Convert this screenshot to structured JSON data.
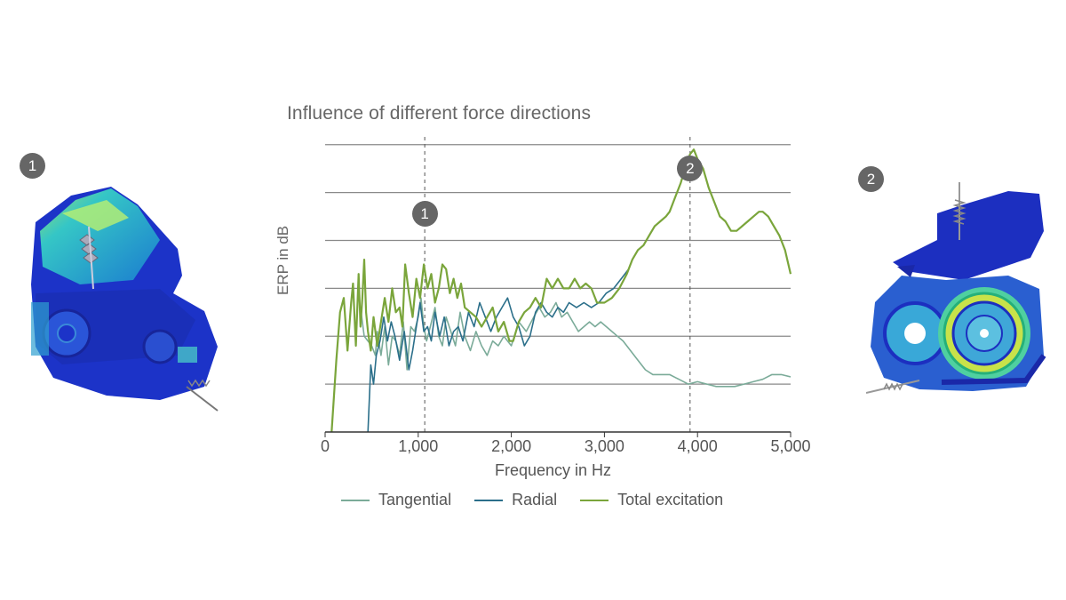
{
  "markers": [
    "1",
    "2"
  ],
  "chart_data": {
    "type": "line",
    "title": "Influence of different force directions",
    "xlabel": "Frequency in Hz",
    "ylabel": "ERP in dB",
    "xlim": [
      0,
      5000
    ],
    "ylim": [
      0,
      6.2
    ],
    "xticks": [
      0,
      1000,
      2000,
      3000,
      4000,
      5000
    ],
    "xtick_labels": [
      "0",
      "1,000",
      "2,000",
      "3,000",
      "4,000",
      "5,000"
    ],
    "ygrid": [
      1,
      2,
      3,
      4,
      5,
      6
    ],
    "legend_position": "bottom-center",
    "reference_lines": [
      {
        "x": 1070,
        "label": "1",
        "label_y": 4.55
      },
      {
        "x": 3920,
        "label": "2",
        "label_y": 5.5
      }
    ],
    "series": [
      {
        "name": "Tangential",
        "color": "#7bab99",
        "x": [
          380,
          420,
          460,
          500,
          540,
          560,
          600,
          640,
          680,
          720,
          760,
          800,
          840,
          880,
          920,
          960,
          1000,
          1030,
          1060,
          1090,
          1130,
          1180,
          1220,
          1260,
          1300,
          1350,
          1400,
          1450,
          1500,
          1560,
          1620,
          1680,
          1740,
          1800,
          1860,
          1920,
          2000,
          2080,
          2160,
          2240,
          2300,
          2360,
          2420,
          2480,
          2540,
          2600,
          2660,
          2720,
          2780,
          2840,
          2900,
          2960,
          3020,
          3080,
          3140,
          3200,
          3280,
          3360,
          3440,
          3520,
          3600,
          3700,
          3800,
          3900,
          4000,
          4100,
          4200,
          4300,
          4400,
          4500,
          4600,
          4700,
          4800,
          4900,
          5000
        ],
        "y": [
          2.6,
          2.0,
          1.9,
          1.8,
          1.6,
          2.1,
          1.6,
          2.2,
          1.4,
          2.0,
          1.9,
          1.6,
          2.3,
          1.3,
          2.2,
          2.1,
          2.4,
          2.8,
          2.2,
          1.9,
          2.2,
          2.6,
          2.0,
          1.8,
          2.4,
          2.1,
          1.8,
          2.5,
          2.0,
          1.7,
          2.1,
          1.8,
          1.6,
          1.9,
          1.8,
          2.0,
          1.8,
          2.3,
          2.1,
          2.4,
          2.6,
          2.4,
          2.5,
          2.7,
          2.4,
          2.5,
          2.3,
          2.1,
          2.2,
          2.3,
          2.2,
          2.3,
          2.2,
          2.1,
          2.0,
          1.9,
          1.7,
          1.5,
          1.3,
          1.2,
          1.2,
          1.2,
          1.1,
          1.0,
          1.05,
          1.0,
          0.95,
          0.95,
          0.95,
          1.0,
          1.05,
          1.1,
          1.2,
          1.2,
          1.15
        ]
      },
      {
        "name": "Radial",
        "color": "#2b6f8a",
        "x": [
          460,
          490,
          520,
          550,
          590,
          630,
          670,
          710,
          750,
          800,
          850,
          900,
          940,
          980,
          1020,
          1060,
          1100,
          1140,
          1180,
          1230,
          1280,
          1330,
          1380,
          1430,
          1480,
          1540,
          1600,
          1660,
          1720,
          1780,
          1840,
          1900,
          1960,
          2020,
          2080,
          2140,
          2200,
          2260,
          2320,
          2380,
          2440,
          2500,
          2560,
          2620,
          2700,
          2780,
          2860,
          2940,
          3020,
          3100,
          3180,
          3260,
          3300
        ],
        "y": [
          0.0,
          1.4,
          1.0,
          1.6,
          1.9,
          2.4,
          1.9,
          2.3,
          2.0,
          1.5,
          2.1,
          1.3,
          1.7,
          2.2,
          2.7,
          2.1,
          2.2,
          1.9,
          2.5,
          2.0,
          2.4,
          1.8,
          2.1,
          2.2,
          1.9,
          2.5,
          2.2,
          2.7,
          2.4,
          2.1,
          2.4,
          2.6,
          2.8,
          2.4,
          2.2,
          1.8,
          2.0,
          2.5,
          2.7,
          2.5,
          2.4,
          2.6,
          2.5,
          2.7,
          2.6,
          2.7,
          2.6,
          2.7,
          2.9,
          3.0,
          3.2,
          3.4,
          3.6
        ]
      },
      {
        "name": "Total excitation",
        "color": "#7aa53b",
        "x": [
          70,
          120,
          160,
          200,
          240,
          280,
          300,
          330,
          360,
          380,
          400,
          420,
          440,
          460,
          490,
          520,
          560,
          600,
          640,
          680,
          720,
          760,
          800,
          830,
          860,
          900,
          940,
          980,
          1020,
          1060,
          1100,
          1140,
          1180,
          1220,
          1260,
          1300,
          1340,
          1380,
          1420,
          1460,
          1500,
          1560,
          1620,
          1680,
          1740,
          1800,
          1860,
          1920,
          1980,
          2020,
          2080,
          2140,
          2200,
          2260,
          2320,
          2380,
          2440,
          2500,
          2560,
          2620,
          2680,
          2740,
          2800,
          2860,
          2920,
          3000,
          3080,
          3160,
          3240,
          3300,
          3360,
          3420,
          3480,
          3540,
          3600,
          3660,
          3700,
          3760,
          3820,
          3880,
          3920,
          3960,
          4000,
          4060,
          4120,
          4180,
          4240,
          4300,
          4360,
          4420,
          4480,
          4540,
          4600,
          4660,
          4700,
          4760,
          4820,
          4880,
          4940,
          5000
        ],
        "y": [
          0.0,
          1.5,
          2.5,
          2.8,
          1.7,
          2.7,
          3.1,
          1.8,
          3.3,
          2.2,
          2.8,
          3.6,
          2.5,
          2.1,
          1.7,
          2.4,
          1.8,
          2.3,
          2.8,
          2.3,
          3.0,
          2.5,
          2.6,
          2.2,
          3.5,
          2.9,
          2.4,
          3.2,
          2.8,
          3.5,
          3.0,
          3.3,
          2.7,
          3.0,
          3.5,
          3.4,
          2.9,
          3.2,
          2.8,
          3.1,
          2.6,
          2.5,
          2.4,
          2.2,
          2.4,
          2.6,
          2.1,
          2.3,
          1.9,
          1.9,
          2.3,
          2.5,
          2.6,
          2.8,
          2.6,
          3.2,
          3.0,
          3.2,
          3.0,
          3.0,
          3.2,
          3.0,
          3.1,
          3.0,
          2.7,
          2.7,
          2.8,
          3.0,
          3.3,
          3.6,
          3.8,
          3.9,
          4.1,
          4.3,
          4.4,
          4.5,
          4.6,
          4.9,
          5.2,
          5.6,
          5.8,
          5.9,
          5.7,
          5.5,
          5.1,
          4.8,
          4.5,
          4.4,
          4.2,
          4.2,
          4.3,
          4.4,
          4.5,
          4.6,
          4.6,
          4.5,
          4.3,
          4.1,
          3.8,
          3.3
        ]
      }
    ]
  }
}
